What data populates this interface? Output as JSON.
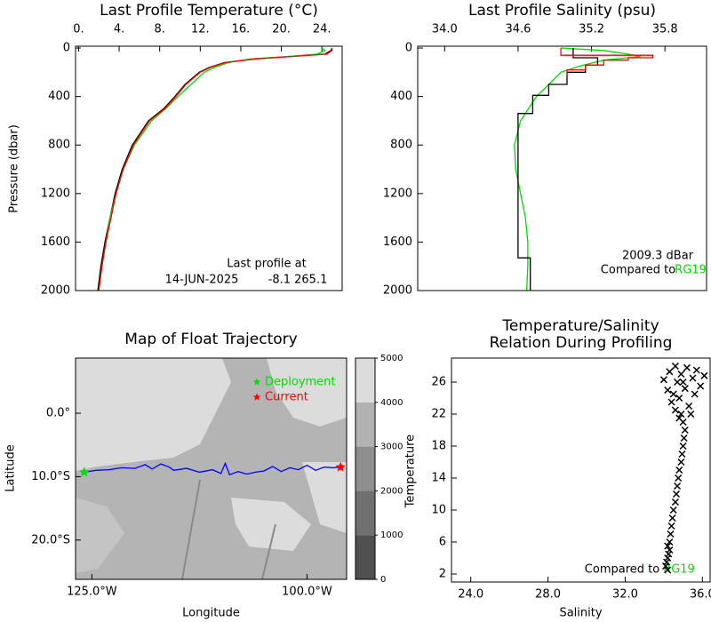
{
  "chart_data": [
    {
      "type": "profile",
      "title": "Last Profile Temperature (°C)",
      "ylabel": "Pressure (dbar)",
      "xlim": [
        -0.3,
        26.0
      ],
      "xticks": [
        {
          "value": 0,
          "label": "0."
        },
        {
          "value": 4,
          "label": "4."
        },
        {
          "value": 8,
          "label": "8."
        },
        {
          "value": 12,
          "label": "12."
        },
        {
          "value": 16,
          "label": "16."
        },
        {
          "value": 20,
          "label": "20."
        },
        {
          "value": 24,
          "label": "24."
        }
      ],
      "ylim": [
        2000,
        -15
      ],
      "yticks": [
        0,
        400,
        800,
        1200,
        1600,
        2000
      ],
      "annotation": [
        "Last profile at",
        "14-JUN-2025",
        "-8.1 265.1"
      ],
      "series": [
        {
          "color": "#000000",
          "y": [
            0,
            20,
            50,
            70,
            90,
            120,
            160,
            200,
            300,
            400,
            500,
            600,
            800,
            1000,
            1200,
            1400,
            1600,
            1800,
            2000
          ],
          "x": [
            25.0,
            24.9,
            24.3,
            20.8,
            17.3,
            14.4,
            12.9,
            11.9,
            10.5,
            9.5,
            8.4,
            6.9,
            5.3,
            4.3,
            3.6,
            3.1,
            2.6,
            2.2,
            1.9
          ]
        },
        {
          "color": "#00dd00",
          "y": [
            0,
            20,
            50,
            70,
            90,
            120,
            160,
            200,
            300,
            400,
            500,
            600,
            800,
            1000,
            1200,
            1400,
            1600,
            1800,
            2000
          ],
          "x": [
            24.0,
            24.3,
            23.5,
            20.5,
            17.0,
            14.8,
            13.4,
            12.4,
            11.1,
            9.8,
            8.6,
            7.2,
            5.5,
            4.4,
            3.7,
            3.1,
            2.7,
            2.3,
            2.0
          ]
        },
        {
          "color": "#ff0000",
          "y": [
            0,
            20,
            50,
            70,
            90,
            120,
            160,
            200,
            300,
            400,
            500,
            600,
            800,
            1000,
            1200,
            1400,
            1600,
            1800,
            2000
          ],
          "x": [
            25.0,
            25.0,
            24.5,
            21.0,
            17.5,
            14.5,
            13.0,
            12.0,
            10.6,
            9.6,
            8.5,
            7.0,
            5.4,
            4.4,
            3.7,
            3.2,
            2.7,
            2.3,
            2.0
          ]
        }
      ]
    },
    {
      "type": "profile",
      "title": "Last Profile Salinity (psu)",
      "xlim": [
        33.78,
        36.14
      ],
      "xticks": [
        {
          "value": 34.0,
          "label": "34.0"
        },
        {
          "value": 34.6,
          "label": "34.6"
        },
        {
          "value": 35.2,
          "label": "35.2"
        },
        {
          "value": 35.8,
          "label": "35.8"
        }
      ],
      "ylim": [
        2000,
        -15
      ],
      "yticks": [
        0,
        400,
        800,
        1200,
        1600,
        2000
      ],
      "annotation": [
        "2009.3 dBar",
        "Compared to"
      ],
      "reference_label": "RG19",
      "reference_color": "#00dd00",
      "series": [
        {
          "color": "#00dd00",
          "y": [
            0,
            20,
            50,
            70,
            100,
            150,
            200,
            300,
            400,
            600,
            800,
            1000,
            1200,
            1400,
            1600,
            1800,
            2000
          ],
          "x": [
            34.95,
            35.3,
            35.5,
            35.6,
            35.3,
            35.1,
            34.95,
            34.85,
            34.75,
            34.62,
            34.57,
            34.58,
            34.62,
            34.66,
            34.68,
            34.68,
            34.67
          ]
        },
        {
          "color": "#000000",
          "y": [
            0,
            80,
            80,
            140,
            140,
            200,
            200,
            300,
            300,
            390,
            390,
            540,
            540,
            1730,
            1730,
            2000
          ],
          "x": [
            35.05,
            35.05,
            35.25,
            35.25,
            35.15,
            35.15,
            35.0,
            35.0,
            34.85,
            34.85,
            34.72,
            34.72,
            34.6,
            34.6,
            34.7,
            34.7
          ]
        },
        {
          "color": "#ff0000",
          "y": [
            0,
            60,
            60,
            80,
            80,
            100,
            100,
            140,
            140,
            180,
            180,
            230
          ],
          "x": [
            34.95,
            34.95,
            35.7,
            35.7,
            35.5,
            35.5,
            35.3,
            35.3,
            35.15,
            35.15,
            35.0,
            35.0
          ]
        }
      ]
    },
    {
      "type": "map",
      "title": "Map of Float Trajectory",
      "xlabel": "Longitude",
      "ylabel": "Latitude",
      "xlim": [
        -126.9,
        -95.4
      ],
      "xticks": [
        {
          "value": -125,
          "label": "125.0°W"
        },
        {
          "value": -100,
          "label": "100.0°W"
        }
      ],
      "ylim": [
        -26.2,
        8.7
      ],
      "yticks": [
        {
          "value": 0,
          "label": "0.0°"
        },
        {
          "value": -10,
          "label": "10.0°S"
        },
        {
          "value": -20,
          "label": "20.0°S"
        }
      ],
      "colorbar": {
        "lim": [
          0,
          5000
        ],
        "ticks": [
          0,
          1000,
          2000,
          3000,
          4000,
          5000
        ],
        "colors": [
          "#505050",
          "#707070",
          "#8e8e8e",
          "#b2b2b2",
          "#dcdcdc"
        ]
      },
      "legend": [
        {
          "name": "Deployment",
          "color": "#00dd00",
          "lon": -125.9,
          "lat": -9.3
        },
        {
          "name": "Current",
          "color": "#ff0000",
          "lon": -96.1,
          "lat": -8.5
        }
      ],
      "series": [
        {
          "color": "#0000ff",
          "x": [
            -125.9,
            -124.5,
            -123,
            -121.5,
            -120,
            -118.8,
            -118,
            -117,
            -116,
            -115.5,
            -114,
            -112.5,
            -111,
            -110,
            -109.5,
            -109,
            -108,
            -107,
            -106,
            -105,
            -104,
            -103,
            -102,
            -101,
            -100,
            -99,
            -98,
            -97,
            -96.1
          ],
          "y": [
            -9.3,
            -9.0,
            -8.9,
            -8.6,
            -8.7,
            -8.1,
            -8.8,
            -8.0,
            -8.5,
            -9.0,
            -8.7,
            -9.3,
            -8.9,
            -9.5,
            -7.9,
            -9.7,
            -9.2,
            -9.6,
            -9.3,
            -9.1,
            -8.4,
            -9.2,
            -8.6,
            -8.9,
            -8.2,
            -9.0,
            -8.5,
            -8.6,
            -8.5
          ]
        }
      ]
    },
    {
      "type": "scatter",
      "title": "Temperature/Salinity",
      "subtitle": "Relation During Profiling",
      "xlabel": "Salinity",
      "ylabel": "Temperature",
      "xlim": [
        23.0,
        36.4
      ],
      "xticks": [
        {
          "value": 24,
          "label": "24.0"
        },
        {
          "value": 28,
          "label": "28.0"
        },
        {
          "value": 32,
          "label": "32.0"
        },
        {
          "value": 36,
          "label": "36.0"
        }
      ],
      "ylim": [
        1,
        29
      ],
      "yticks": [
        2,
        6,
        10,
        14,
        18,
        22,
        26
      ],
      "annotation": [
        "Compared to"
      ],
      "reference_label": "RG19",
      "reference_color": "#00dd00",
      "series": [
        {
          "color": "#000000",
          "x": [
            34.2,
            34.1,
            34.15,
            34.2,
            34.25,
            34.3,
            34.2,
            34.3,
            34.35,
            34.4,
            34.45,
            34.5,
            34.6,
            34.65,
            34.7,
            34.75,
            34.8,
            34.9,
            34.95,
            35.0,
            35.05,
            35.1,
            35.0,
            34.9,
            34.6,
            35.3,
            34.4,
            34.8,
            35.6,
            34.2,
            35.1,
            35.9,
            34.7,
            34.0,
            35.5,
            36.1,
            34.9,
            34.3,
            35.7,
            35.2,
            34.6,
            35.0,
            35.4,
            34.8,
            34.5
          ],
          "y": [
            2.5,
            3,
            3.5,
            4,
            4.5,
            5,
            5.5,
            6,
            7,
            8,
            9,
            10,
            11,
            12,
            13,
            14,
            15,
            16,
            17,
            18,
            19,
            20,
            21,
            22,
            22.5,
            23,
            23.5,
            24,
            24.5,
            25,
            25.2,
            25.5,
            26,
            26.3,
            26.5,
            26.8,
            27,
            27.3,
            27.5,
            27.8,
            28,
            26,
            22,
            21.5,
            24.5
          ]
        }
      ]
    }
  ]
}
